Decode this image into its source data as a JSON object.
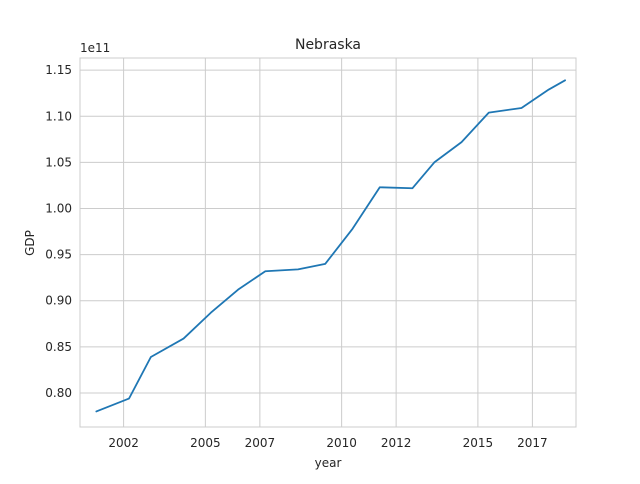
{
  "chart_data": {
    "type": "line",
    "title": "Nebraska",
    "xlabel": "year",
    "ylabel": "GDP",
    "y_scale_label": "1e11",
    "y_scale_factor": 100000000000,
    "xlim": [
      2000.4,
      2018.6
    ],
    "ylim": [
      0.7631,
      1.1632
    ],
    "x_ticks": [
      2002,
      2005,
      2007,
      2010,
      2012,
      2015,
      2017
    ],
    "x_tick_labels": [
      "2002",
      "2005",
      "2007",
      "2010",
      "2012",
      "2015",
      "2017"
    ],
    "y_ticks": [
      0.8,
      0.85,
      0.9,
      0.95,
      1.0,
      1.05,
      1.1,
      1.15
    ],
    "y_tick_labels": [
      "0.80",
      "0.85",
      "0.90",
      "0.95",
      "1.00",
      "1.05",
      "1.10",
      "1.15"
    ],
    "grid": true,
    "legend": "none",
    "series": [
      {
        "color": "#1f77b4",
        "x": [
          2001,
          2002.2,
          2003.0,
          2004.2,
          2005.2,
          2006.2,
          2007.2,
          2008.4,
          2009.4,
          2010.4,
          2011.4,
          2012.6,
          2013.4,
          2014.4,
          2015.4,
          2016.6,
          2017.6,
          2018.2
        ],
        "y": [
          0.78,
          0.794,
          0.839,
          0.859,
          0.887,
          0.912,
          0.932,
          0.934,
          0.94,
          0.978,
          1.023,
          1.022,
          1.05,
          1.072,
          1.104,
          1.109,
          1.129,
          1.139
        ]
      }
    ]
  }
}
